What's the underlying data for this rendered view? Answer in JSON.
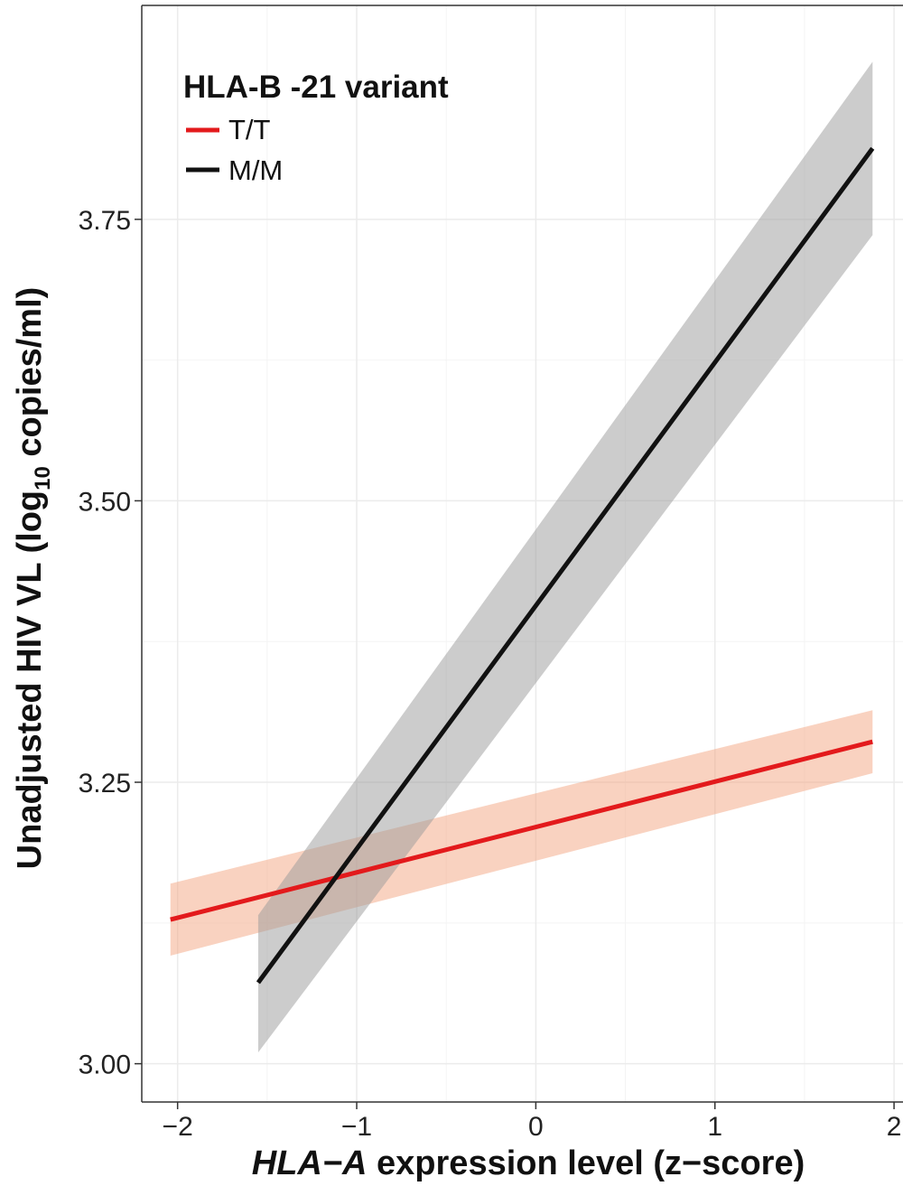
{
  "chart_data": {
    "type": "line",
    "xlabel_italic": "HLA−A",
    "xlabel_rest": " expression level (z−score)",
    "ylabel_main": "Unadjusted HIV VL (log",
    "ylabel_sub": "10",
    "ylabel_end": " copies/ml)",
    "xlim": [
      -2.2,
      2.05
    ],
    "ylim": [
      2.966,
      3.94
    ],
    "x_ticks": [
      {
        "value": -2,
        "label": "−2"
      },
      {
        "value": -1,
        "label": "−1"
      },
      {
        "value": 0,
        "label": "0"
      },
      {
        "value": 1,
        "label": "1"
      },
      {
        "value": 2,
        "label": "2"
      }
    ],
    "y_ticks": [
      {
        "value": 3.0,
        "label": "3.00"
      },
      {
        "value": 3.25,
        "label": "3.25"
      },
      {
        "value": 3.5,
        "label": "3.50"
      },
      {
        "value": 3.75,
        "label": "3.75"
      }
    ],
    "grid": true,
    "legend": {
      "title": "HLA-B -21 variant",
      "placement": "top-left"
    },
    "series": [
      {
        "name": "T/T",
        "color": "#e31a1c",
        "band_color": "#f4a582",
        "x": [
          -2.04,
          1.88
        ],
        "y": [
          3.128,
          3.286
        ],
        "ci_lower": [
          3.096,
          3.258
        ],
        "ci_upper": [
          3.16,
          3.314
        ]
      },
      {
        "name": "M/M",
        "color": "#111111",
        "band_color": "#999999",
        "x": [
          -1.55,
          1.88
        ],
        "y": [
          3.072,
          3.813
        ],
        "ci_lower": [
          3.01,
          3.736
        ],
        "ci_upper": [
          3.132,
          3.89
        ]
      }
    ]
  }
}
